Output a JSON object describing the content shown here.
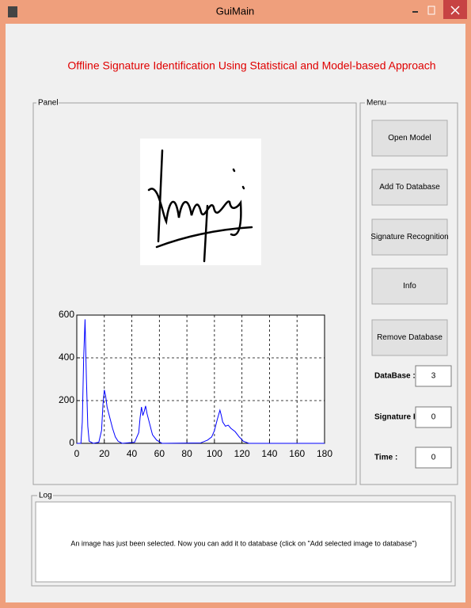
{
  "window": {
    "title": "GuiMain"
  },
  "heading": "Offline Signature Identification Using Statistical and Model-based Approach",
  "panel": {
    "label": "Panel"
  },
  "menu": {
    "label": "Menu",
    "buttons": [
      "Open Model",
      "Add To Database",
      "Signature Recognition",
      "Info",
      "Remove Database"
    ],
    "fields": [
      {
        "label": "DataBase :",
        "value": 3
      },
      {
        "label": "Signature ID :",
        "value": 0
      },
      {
        "label": "Time :",
        "value": 0
      }
    ]
  },
  "log": {
    "label": "Log",
    "message": "An image has just been selected. Now you can add it to database (click on \"Add selected image to database\")"
  },
  "chart_data": {
    "type": "line",
    "color": "#0000ff",
    "grid": true,
    "x": [
      0,
      3,
      4,
      5,
      6,
      7,
      8,
      9,
      12,
      16,
      18,
      19,
      20,
      21,
      22,
      24,
      26,
      28,
      30,
      33,
      42,
      45,
      46,
      47,
      48,
      49,
      50,
      51,
      53,
      55,
      58,
      62,
      90,
      95,
      98,
      100,
      102,
      104,
      105,
      106,
      108,
      110,
      112,
      115,
      118,
      121,
      125,
      180
    ],
    "values": [
      0,
      0,
      100,
      400,
      580,
      300,
      80,
      10,
      0,
      5,
      60,
      180,
      250,
      220,
      170,
      120,
      70,
      30,
      10,
      0,
      5,
      50,
      120,
      170,
      130,
      150,
      175,
      140,
      90,
      40,
      15,
      0,
      2,
      15,
      30,
      60,
      110,
      155,
      130,
      100,
      80,
      85,
      70,
      55,
      30,
      10,
      0,
      0
    ],
    "xlim": [
      0,
      180
    ],
    "xticks": [
      0,
      20,
      40,
      60,
      80,
      100,
      120,
      140,
      160,
      180
    ],
    "ylim": [
      0,
      600
    ],
    "yticks": [
      0,
      200,
      400,
      600
    ]
  }
}
